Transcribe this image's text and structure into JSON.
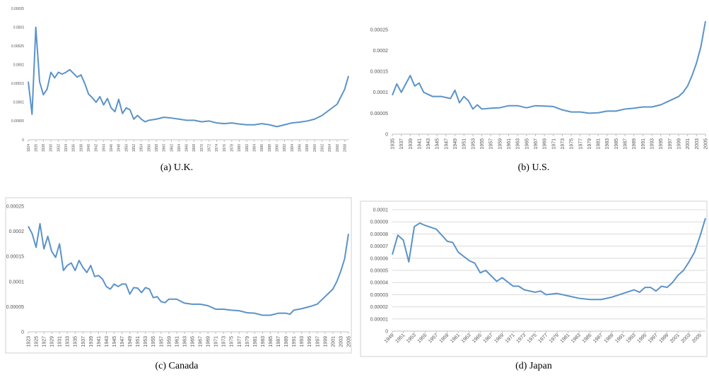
{
  "chart_data": [
    {
      "type": "line",
      "caption": "(a) U.K.",
      "color": "#5b93c9",
      "grid": false,
      "xlim": [
        1924,
        2009
      ],
      "ylim": [
        0,
        0.00035
      ],
      "yticks": [
        0,
        5e-05,
        0.0001,
        0.00015,
        0.0002,
        0.00025,
        0.0003,
        0.00035
      ],
      "xticks": [
        1924,
        1926,
        1928,
        1930,
        1932,
        1934,
        1936,
        1938,
        1940,
        1942,
        1944,
        1946,
        1948,
        1950,
        1952,
        1954,
        1956,
        1958,
        1960,
        1962,
        1964,
        1966,
        1968,
        1970,
        1972,
        1974,
        1976,
        1978,
        1980,
        1982,
        1984,
        1986,
        1988,
        1990,
        1992,
        1994,
        1996,
        1998,
        2000,
        2002,
        2004,
        2006,
        2008
      ],
      "x": [
        1924,
        1925,
        1926,
        1927,
        1928,
        1929,
        1930,
        1931,
        1932,
        1933,
        1934,
        1935,
        1936,
        1937,
        1938,
        1939,
        1940,
        1941,
        1942,
        1943,
        1944,
        1945,
        1946,
        1947,
        1948,
        1949,
        1950,
        1951,
        1952,
        1953,
        1954,
        1955,
        1956,
        1958,
        1960,
        1962,
        1964,
        1966,
        1968,
        1970,
        1972,
        1974,
        1976,
        1978,
        1980,
        1982,
        1984,
        1986,
        1988,
        1990,
        1992,
        1994,
        1996,
        1998,
        2000,
        2002,
        2004,
        2006,
        2008,
        2009
      ],
      "values": [
        0.000155,
        6.8e-05,
        0.0003,
        0.000155,
        0.00012,
        0.000135,
        0.00018,
        0.000165,
        0.00018,
        0.000175,
        0.00018,
        0.000187,
        0.000177,
        0.000167,
        0.000173,
        0.00015,
        0.000122,
        0.000112,
        0.0001,
        0.000115,
        9.3e-05,
        0.00011,
        8.5e-05,
        7.5e-05,
        0.000108,
        7e-05,
        8.5e-05,
        8e-05,
        5.5e-05,
        6.5e-05,
        5.5e-05,
        4.8e-05,
        5.2e-05,
        5.5e-05,
        6e-05,
        5.8e-05,
        5.5e-05,
        5.2e-05,
        5.2e-05,
        4.8e-05,
        5e-05,
        4.5e-05,
        4.3e-05,
        4.5e-05,
        4.2e-05,
        4e-05,
        4e-05,
        4.3e-05,
        4e-05,
        3.5e-05,
        4e-05,
        4.5e-05,
        4.7e-05,
        5e-05,
        5.5e-05,
        6.5e-05,
        8e-05,
        9.5e-05,
        0.000135,
        0.00017
      ]
    },
    {
      "type": "line",
      "caption": "(b) U.S.",
      "color": "#5b93c9",
      "grid": false,
      "xlim": [
        1935,
        2005
      ],
      "ylim": [
        0,
        0.00027
      ],
      "yticks": [
        0,
        5e-05,
        0.0001,
        0.00015,
        0.0002,
        0.00025
      ],
      "xticks": [
        1935,
        1937,
        1939,
        1941,
        1943,
        1945,
        1947,
        1949,
        1951,
        1953,
        1955,
        1957,
        1959,
        1961,
        1963,
        1965,
        1967,
        1969,
        1971,
        1973,
        1975,
        1977,
        1979,
        1981,
        1983,
        1985,
        1987,
        1989,
        1991,
        1993,
        1995,
        1997,
        1999,
        2001,
        2003,
        2005
      ],
      "x": [
        1935,
        1936,
        1937,
        1938,
        1939,
        1940,
        1941,
        1942,
        1943,
        1944,
        1946,
        1948,
        1949,
        1950,
        1951,
        1952,
        1953,
        1954,
        1955,
        1957,
        1959,
        1961,
        1963,
        1965,
        1967,
        1969,
        1971,
        1973,
        1975,
        1977,
        1979,
        1981,
        1983,
        1985,
        1987,
        1989,
        1991,
        1993,
        1995,
        1997,
        1999,
        2000,
        2001,
        2002,
        2003,
        2004,
        2005
      ],
      "values": [
        9.3e-05,
        0.00012,
        0.0001,
        0.00012,
        0.00014,
        0.000115,
        0.000122,
        0.0001,
        9.5e-05,
        9e-05,
        9e-05,
        8.5e-05,
        0.000105,
        7.5e-05,
        9e-05,
        8e-05,
        6e-05,
        7e-05,
        6e-05,
        6.2e-05,
        6.3e-05,
        6.8e-05,
        6.8e-05,
        6.3e-05,
        6.8e-05,
        6.7e-05,
        6.6e-05,
        5.8e-05,
        5.3e-05,
        5.3e-05,
        5e-05,
        5.1e-05,
        5.5e-05,
        5.5e-05,
        6e-05,
        6.2e-05,
        6.5e-05,
        6.5e-05,
        7e-05,
        8e-05,
        9e-05,
        0.0001,
        0.000115,
        0.00014,
        0.00017,
        0.00021,
        0.00027
      ]
    },
    {
      "type": "line",
      "caption": "(c) Canada",
      "color": "#5b93c9",
      "grid": false,
      "xlim": [
        1923,
        2005
      ],
      "ylim": [
        0,
        0.00025
      ],
      "yticks": [
        0,
        5e-05,
        0.0001,
        0.00015,
        0.0002,
        0.00025
      ],
      "xticks": [
        1923,
        1925,
        1927,
        1929,
        1931,
        1933,
        1935,
        1937,
        1939,
        1941,
        1943,
        1945,
        1947,
        1949,
        1951,
        1953,
        1955,
        1957,
        1959,
        1961,
        1963,
        1965,
        1967,
        1969,
        1971,
        1973,
        1975,
        1977,
        1979,
        1981,
        1983,
        1985,
        1987,
        1989,
        1991,
        1993,
        1995,
        1997,
        1999,
        2001,
        2003,
        2005
      ],
      "x": [
        1923,
        1924,
        1925,
        1926,
        1927,
        1928,
        1929,
        1930,
        1931,
        1932,
        1933,
        1934,
        1935,
        1936,
        1937,
        1938,
        1939,
        1940,
        1941,
        1942,
        1943,
        1944,
        1945,
        1946,
        1947,
        1948,
        1949,
        1950,
        1951,
        1952,
        1953,
        1954,
        1955,
        1956,
        1957,
        1958,
        1959,
        1961,
        1963,
        1965,
        1967,
        1969,
        1971,
        1973,
        1975,
        1977,
        1979,
        1981,
        1983,
        1985,
        1987,
        1989,
        1990,
        1991,
        1993,
        1995,
        1997,
        1999,
        2001,
        2002,
        2003,
        2004,
        2005
      ],
      "values": [
        0.00021,
        0.000195,
        0.000168,
        0.000215,
        0.000165,
        0.00019,
        0.00016,
        0.000148,
        0.000175,
        0.000122,
        0.000132,
        0.000137,
        0.000122,
        0.000142,
        0.000128,
        0.000118,
        0.000132,
        0.00011,
        0.000112,
        0.000105,
        9e-05,
        8.5e-05,
        9.5e-05,
        9e-05,
        9.5e-05,
        9.5e-05,
        7.5e-05,
        8.8e-05,
        8.7e-05,
        7.8e-05,
        8.8e-05,
        8.5e-05,
        6.8e-05,
        7e-05,
        6e-05,
        5.8e-05,
        6.5e-05,
        6.5e-05,
        5.7e-05,
        5.5e-05,
        5.5e-05,
        5.2e-05,
        4.5e-05,
        4.5e-05,
        4.3e-05,
        4.2e-05,
        3.8e-05,
        3.7e-05,
        3.3e-05,
        3.3e-05,
        3.7e-05,
        3.7e-05,
        3.5e-05,
        4.3e-05,
        4.6e-05,
        5e-05,
        5.5e-05,
        7e-05,
        8.5e-05,
        0.0001,
        0.00012,
        0.000145,
        0.000195
      ]
    },
    {
      "type": "line",
      "caption": "(d) Japan",
      "color": "#5b93c9",
      "grid": true,
      "xlim": [
        1949,
        2006
      ],
      "ylim": [
        0,
        0.0001
      ],
      "yticks": [
        0,
        1e-05,
        2e-05,
        3e-05,
        4e-05,
        5e-05,
        6e-05,
        7e-05,
        8e-05,
        9e-05,
        0.0001
      ],
      "xticks": [
        1949,
        1951,
        1953,
        1955,
        1957,
        1959,
        1961,
        1963,
        1965,
        1967,
        1969,
        1971,
        1973,
        1975,
        1977,
        1979,
        1981,
        1983,
        1985,
        1987,
        1989,
        1991,
        1993,
        1995,
        1997,
        1999,
        2001,
        2003,
        2005
      ],
      "x": [
        1949,
        1950,
        1951,
        1952,
        1953,
        1954,
        1955,
        1957,
        1959,
        1960,
        1961,
        1963,
        1964,
        1965,
        1966,
        1968,
        1969,
        1971,
        1972,
        1973,
        1975,
        1976,
        1977,
        1979,
        1981,
        1983,
        1985,
        1987,
        1989,
        1991,
        1993,
        1994,
        1995,
        1996,
        1997,
        1998,
        1999,
        2000,
        2001,
        2002,
        2003,
        2004,
        2005,
        2006
      ],
      "values": [
        6.3e-05,
        7.9e-05,
        7.5e-05,
        5.7e-05,
        8.6e-05,
        8.9e-05,
        8.7e-05,
        8.4e-05,
        7.4e-05,
        7.3e-05,
        6.5e-05,
        5.8e-05,
        5.6e-05,
        4.8e-05,
        5e-05,
        4.1e-05,
        4.4e-05,
        3.7e-05,
        3.7e-05,
        3.4e-05,
        3.2e-05,
        3.3e-05,
        3e-05,
        3.1e-05,
        2.9e-05,
        2.7e-05,
        2.6e-05,
        2.6e-05,
        2.8e-05,
        3.1e-05,
        3.4e-05,
        3.2e-05,
        3.6e-05,
        3.6e-05,
        3.3e-05,
        3.7e-05,
        3.6e-05,
        4e-05,
        4.6e-05,
        5e-05,
        5.7e-05,
        6.5e-05,
        7.8e-05,
        9.3e-05
      ]
    }
  ]
}
